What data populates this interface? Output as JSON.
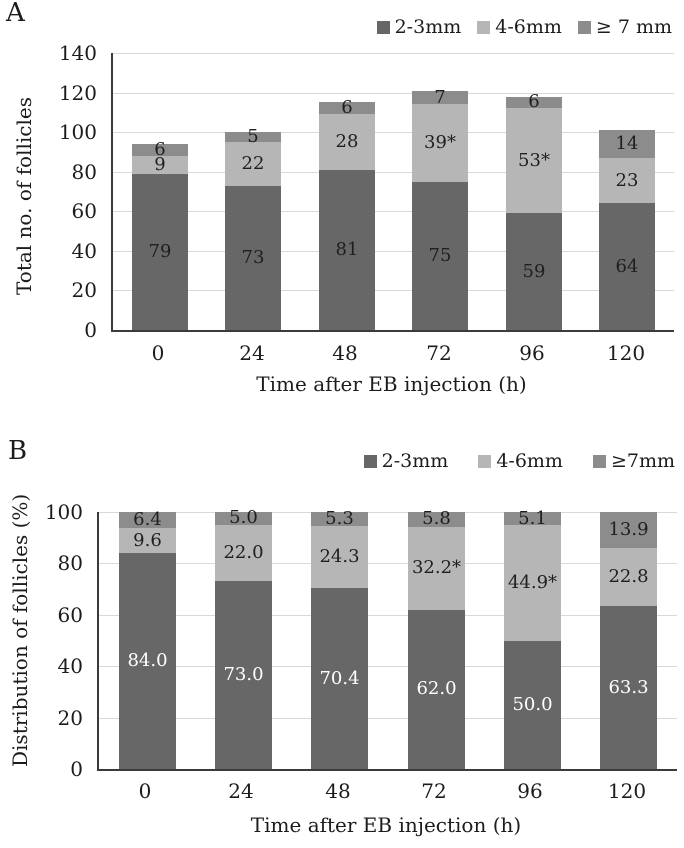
{
  "colors": {
    "background": "#ffffff",
    "grid": "#d9d9d9",
    "axis": "#3b3b3b",
    "text": "#1c1c1c"
  },
  "chart_data": [
    {
      "type": "bar",
      "stacked": true,
      "panel_label": "A",
      "title": "",
      "ylabel": "Total no. of follicles",
      "xlabel": "Time after EB injection (h)",
      "categories": [
        "0",
        "24",
        "48",
        "72",
        "96",
        "120"
      ],
      "series": [
        {
          "name": "2-3mm",
          "color": "#676767",
          "label_color": "#1f1f1f",
          "values": [
            79,
            73,
            81,
            75,
            59,
            64
          ],
          "labels": [
            "79",
            "73",
            "81",
            "75",
            "59",
            "64"
          ]
        },
        {
          "name": "4-6mm",
          "color": "#b6b6b6",
          "label_color": "#1f1f1f",
          "values": [
            9,
            22,
            28,
            39,
            53,
            23
          ],
          "labels": [
            "9",
            "22",
            "28",
            "39*",
            "53*",
            "23"
          ]
        },
        {
          "name": "≥ 7 mm",
          "color": "#8c8c8c",
          "label_color": "#1f1f1f",
          "values": [
            6,
            5,
            6,
            7,
            6,
            14
          ],
          "labels": [
            "6",
            "5",
            "6",
            "7",
            "6",
            "14"
          ]
        }
      ],
      "ylim": [
        0,
        140
      ],
      "ytick_step": 20,
      "grid": true,
      "legend_position": "top-right"
    },
    {
      "type": "bar",
      "stacked": true,
      "panel_label": "B",
      "title": "",
      "ylabel": "Distribution of follicles (%)",
      "xlabel": "Time after EB injection (h)",
      "categories": [
        "0",
        "24",
        "48",
        "72",
        "96",
        "120"
      ],
      "series": [
        {
          "name": "2-3mm",
          "color": "#676767",
          "label_color": "#ffffff",
          "values": [
            84.0,
            73.0,
            70.4,
            62.0,
            50.0,
            63.3
          ],
          "labels": [
            "84.0",
            "73.0",
            "70.4",
            "62.0",
            "50.0",
            "63.3"
          ]
        },
        {
          "name": "4-6mm",
          "color": "#b6b6b6",
          "label_color": "#1f1f1f",
          "values": [
            9.6,
            22.0,
            24.3,
            32.2,
            44.9,
            22.8
          ],
          "labels": [
            "9.6",
            "22.0",
            "24.3",
            "32.2*",
            "44.9*",
            "22.8"
          ]
        },
        {
          "name": "≥7mm",
          "color": "#8c8c8c",
          "label_color": "#1f1f1f",
          "values": [
            6.4,
            5.0,
            5.3,
            5.8,
            5.1,
            13.9
          ],
          "labels": [
            "6.4",
            "5.0",
            "5.3",
            "5.8",
            "5.1",
            "13.9"
          ]
        }
      ],
      "ylim": [
        0,
        100
      ],
      "ytick_step": 20,
      "grid": true,
      "legend_position": "top-right"
    }
  ]
}
